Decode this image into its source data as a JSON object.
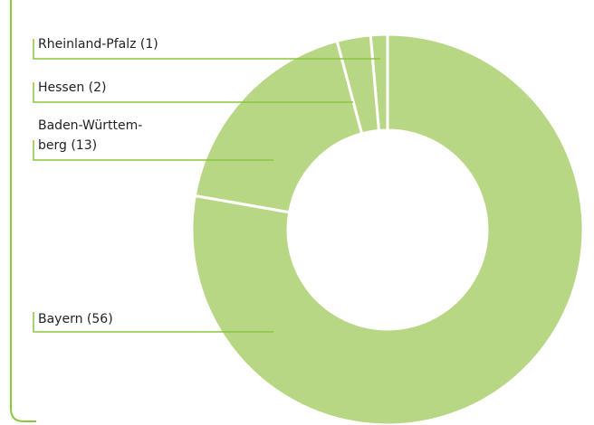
{
  "chart_data": {
    "type": "donut",
    "categories": [
      "Rheinland-Pfalz (1)",
      "Hessen (2)",
      "Baden-Württem-\nberg (13)",
      "Bayern (56)"
    ],
    "values": [
      1,
      2,
      13,
      56
    ],
    "color": "#b8d784"
  }
}
